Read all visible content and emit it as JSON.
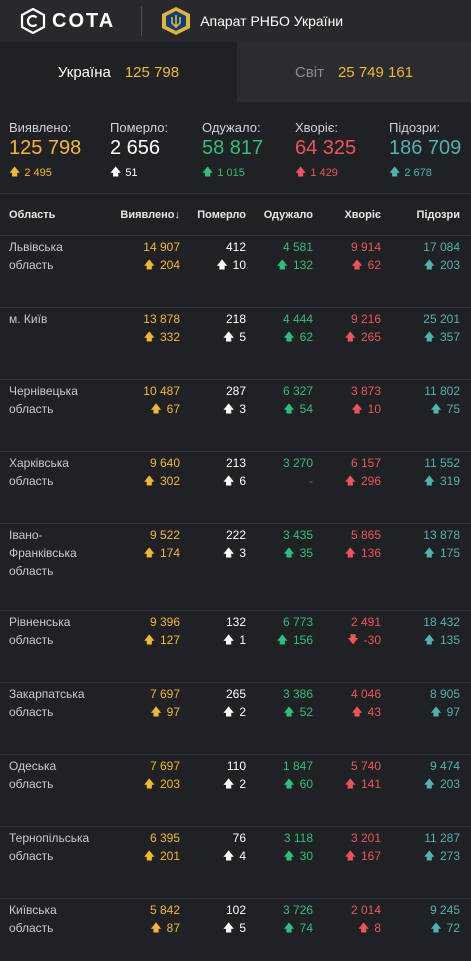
{
  "header": {
    "logo_text": "COTA",
    "org_name": "Апарат РНБО України"
  },
  "tabs": [
    {
      "label": "Україна",
      "value": "125 798"
    },
    {
      "label": "Світ",
      "value": "25 749 161"
    }
  ],
  "summary": [
    {
      "label": "Виявлено:",
      "value": "125 798",
      "delta": "2 495",
      "dir": "up",
      "color": "#f5b731"
    },
    {
      "label": "Померло:",
      "value": "2 656",
      "delta": "51",
      "dir": "up",
      "color": "#ffffff"
    },
    {
      "label": "Одужало:",
      "value": "58 817",
      "delta": "1 015",
      "dir": "up",
      "color": "#2ebf78"
    },
    {
      "label": "Хворіє:",
      "value": "64 325",
      "delta": "1 429",
      "dir": "up",
      "color": "#f0545a"
    },
    {
      "label": "Підозри:",
      "value": "186 709",
      "delta": "2 678",
      "dir": "up",
      "color": "#4fb3b1"
    }
  ],
  "table": {
    "headers": [
      "Область",
      "Виявлено",
      "Померло",
      "Одужало",
      "Хворіє",
      "Підозри"
    ],
    "sort_indicator": "↓",
    "rows": [
      {
        "name": "Львівська область",
        "cells": [
          [
            "14 907",
            "204"
          ],
          [
            "412",
            "10"
          ],
          [
            "4 581",
            "132"
          ],
          [
            "9 914",
            "62"
          ],
          [
            "17 084",
            "203"
          ]
        ],
        "dirs": [
          "up",
          "up",
          "up",
          "up",
          "up"
        ]
      },
      {
        "name": "м. Київ",
        "cells": [
          [
            "13 878",
            "332"
          ],
          [
            "218",
            "5"
          ],
          [
            "4 444",
            "62"
          ],
          [
            "9 216",
            "265"
          ],
          [
            "25 201",
            "357"
          ]
        ],
        "dirs": [
          "up",
          "up",
          "up",
          "up",
          "up"
        ]
      },
      {
        "name": "Чернівецька область",
        "cells": [
          [
            "10 487",
            "67"
          ],
          [
            "287",
            "3"
          ],
          [
            "6 327",
            "54"
          ],
          [
            "3 873",
            "10"
          ],
          [
            "11 802",
            "75"
          ]
        ],
        "dirs": [
          "up",
          "up",
          "up",
          "up",
          "up"
        ]
      },
      {
        "name": "Харківська область",
        "cells": [
          [
            "9 640",
            "302"
          ],
          [
            "213",
            "6"
          ],
          [
            "3 270",
            "-"
          ],
          [
            "6 157",
            "296"
          ],
          [
            "11 552",
            "319"
          ]
        ],
        "dirs": [
          "up",
          "up",
          "none",
          "up",
          "up"
        ]
      },
      {
        "name": "Івано-Франківська область",
        "cells": [
          [
            "9 522",
            "174"
          ],
          [
            "222",
            "3"
          ],
          [
            "3 435",
            "35"
          ],
          [
            "5 865",
            "136"
          ],
          [
            "13 878",
            "175"
          ]
        ],
        "dirs": [
          "up",
          "up",
          "up",
          "up",
          "up"
        ]
      },
      {
        "name": "Рівненська область",
        "cells": [
          [
            "9 396",
            "127"
          ],
          [
            "132",
            "1"
          ],
          [
            "6 773",
            "156"
          ],
          [
            "2 491",
            "-30"
          ],
          [
            "18 432",
            "135"
          ]
        ],
        "dirs": [
          "up",
          "up",
          "up",
          "down",
          "up"
        ]
      },
      {
        "name": "Закарпатська область",
        "cells": [
          [
            "7 697",
            "97"
          ],
          [
            "265",
            "2"
          ],
          [
            "3 386",
            "52"
          ],
          [
            "4 046",
            "43"
          ],
          [
            "8 905",
            "97"
          ]
        ],
        "dirs": [
          "up",
          "up",
          "up",
          "up",
          "up"
        ]
      },
      {
        "name": "Одеська область",
        "cells": [
          [
            "7 697",
            "203"
          ],
          [
            "110",
            "2"
          ],
          [
            "1 847",
            "60"
          ],
          [
            "5 740",
            "141"
          ],
          [
            "9 474",
            "203"
          ]
        ],
        "dirs": [
          "up",
          "up",
          "up",
          "up",
          "up"
        ]
      },
      {
        "name": "Тернопільська область",
        "cells": [
          [
            "6 395",
            "201"
          ],
          [
            "76",
            "4"
          ],
          [
            "3 118",
            "30"
          ],
          [
            "3 201",
            "167"
          ],
          [
            "11 287",
            "273"
          ]
        ],
        "dirs": [
          "up",
          "up",
          "up",
          "up",
          "up"
        ]
      },
      {
        "name": "Київська область",
        "cells": [
          [
            "5 842",
            "87"
          ],
          [
            "102",
            "5"
          ],
          [
            "3 726",
            "74"
          ],
          [
            "2 014",
            "8"
          ],
          [
            "9 245",
            "72"
          ]
        ],
        "dirs": [
          "up",
          "up",
          "up",
          "up",
          "up"
        ]
      }
    ]
  },
  "colors": {
    "detected": "#f5b731",
    "deaths": "#ffffff",
    "recovered": "#2ebf78",
    "sick": "#f0545a",
    "suspected": "#4fb3b1"
  }
}
